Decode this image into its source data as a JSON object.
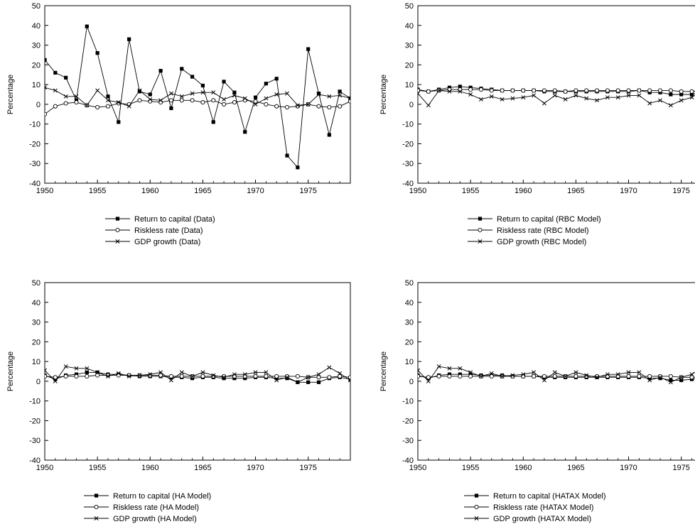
{
  "chart_data": [
    {
      "type": "line",
      "title": "",
      "ylabel": "Percentage",
      "xlabel": "",
      "ylim": [
        -40,
        50
      ],
      "yticks": [
        50,
        40,
        30,
        20,
        10,
        0,
        -10,
        -20,
        -30,
        -40
      ],
      "xlim": [
        1950,
        1979
      ],
      "xticks": [
        1950,
        1955,
        1960,
        1965,
        1970,
        1975
      ],
      "x": [
        1950,
        1951,
        1952,
        1953,
        1954,
        1955,
        1956,
        1957,
        1958,
        1959,
        1960,
        1961,
        1962,
        1963,
        1964,
        1965,
        1966,
        1967,
        1968,
        1969,
        1970,
        1971,
        1972,
        1973,
        1974,
        1975,
        1976,
        1977,
        1978,
        1979
      ],
      "legend_position": "bottom-center",
      "series": [
        {
          "name": "Return to capital (Data)",
          "marker": "square",
          "values": [
            22.5,
            16,
            13.5,
            2,
            39.5,
            26,
            4,
            -9,
            33,
            6.5,
            5,
            17,
            -2,
            18,
            14,
            9.5,
            -9,
            11.5,
            6,
            -14,
            3.5,
            10.5,
            13,
            -26,
            -32,
            28,
            5.5,
            -15.5,
            6.5,
            3
          ]
        },
        {
          "name": "Riskless rate (Data)",
          "marker": "circle",
          "values": [
            -5,
            -1,
            0.5,
            1,
            -0.5,
            -1.5,
            -1,
            0.5,
            0,
            2,
            1.5,
            1,
            2,
            2,
            2,
            1,
            2,
            0,
            1,
            2,
            1.5,
            0,
            -1,
            -1.5,
            -1,
            0,
            -1,
            -1.5,
            -1,
            1.5
          ]
        },
        {
          "name": "GDP growth (Data)",
          "marker": "x",
          "values": [
            8.5,
            7,
            4,
            4,
            -0.5,
            7,
            2,
            1,
            -1,
            7,
            2.5,
            2,
            5.5,
            4,
            5.5,
            6,
            6,
            2.5,
            4.5,
            3,
            0,
            3,
            5,
            5.5,
            -0.5,
            0,
            5,
            4,
            4.5,
            3
          ]
        }
      ]
    },
    {
      "type": "line",
      "title": "",
      "ylabel": "Percentage",
      "xlabel": "",
      "ylim": [
        -40,
        50
      ],
      "yticks": [
        50,
        40,
        30,
        20,
        10,
        0,
        -10,
        -20,
        -30,
        -40
      ],
      "xlim": [
        1950,
        1979
      ],
      "xticks": [
        1950,
        1955,
        1960,
        1965,
        1970,
        1975
      ],
      "x": [
        1950,
        1951,
        1952,
        1953,
        1954,
        1955,
        1956,
        1957,
        1958,
        1959,
        1960,
        1961,
        1962,
        1963,
        1964,
        1965,
        1966,
        1967,
        1968,
        1969,
        1970,
        1971,
        1972,
        1973,
        1974,
        1975,
        1976,
        1977,
        1978,
        1979
      ],
      "legend_position": "bottom-center",
      "series": [
        {
          "name": "Return to capital (RBC Model)",
          "marker": "square",
          "values": [
            7.5,
            6.5,
            7.5,
            8.5,
            9,
            8.5,
            8,
            7.5,
            7,
            7,
            7,
            7,
            6.5,
            6.5,
            6.5,
            6.5,
            6.5,
            6.5,
            6.5,
            6.5,
            6.5,
            7,
            6,
            6,
            5,
            5,
            5,
            6.5,
            7,
            6.5
          ]
        },
        {
          "name": "Riskless rate (RBC Model)",
          "marker": "circle",
          "values": [
            7,
            6.5,
            7,
            7.5,
            7.5,
            7.5,
            7.5,
            7,
            7,
            7,
            7,
            7,
            7,
            7,
            6.5,
            7,
            7,
            7,
            7,
            7,
            7,
            7,
            7,
            7,
            7,
            6.5,
            6.5,
            7,
            7,
            7
          ]
        },
        {
          "name": "GDP growth (RBC Model)",
          "marker": "x",
          "values": [
            5.5,
            -0.5,
            7,
            6.5,
            6.5,
            5,
            2.5,
            4,
            2.5,
            3,
            3.5,
            4.5,
            0.5,
            4.5,
            2.5,
            4.5,
            3,
            2,
            3.5,
            3.5,
            4.5,
            4.5,
            0.5,
            2,
            -0.5,
            2,
            3.5,
            7,
            5,
            2.5
          ]
        }
      ]
    },
    {
      "type": "line",
      "title": "",
      "ylabel": "Percentage",
      "xlabel": "",
      "ylim": [
        -40,
        50
      ],
      "yticks": [
        50,
        40,
        30,
        20,
        10,
        0,
        -10,
        -20,
        -30,
        -40
      ],
      "xlim": [
        1950,
        1979
      ],
      "xticks": [
        1950,
        1955,
        1960,
        1965,
        1970,
        1975
      ],
      "x": [
        1950,
        1951,
        1952,
        1953,
        1954,
        1955,
        1956,
        1957,
        1958,
        1959,
        1960,
        1961,
        1962,
        1963,
        1964,
        1965,
        1966,
        1967,
        1968,
        1969,
        1970,
        1971,
        1972,
        1973,
        1974,
        1975,
        1976,
        1977,
        1978,
        1979
      ],
      "legend_position": "bottom-center",
      "series": [
        {
          "name": "Return to capital (HA Model)",
          "marker": "square",
          "values": [
            3,
            1,
            3,
            3.5,
            4.5,
            4.5,
            3.5,
            3.5,
            3,
            2.5,
            2.5,
            2.5,
            2,
            2,
            1.5,
            2,
            2,
            1.5,
            1.5,
            1.5,
            2,
            2,
            1.5,
            1.5,
            -0.5,
            -0.5,
            -0.5,
            1.5,
            2,
            1
          ]
        },
        {
          "name": "Riskless rate (HA Model)",
          "marker": "circle",
          "values": [
            2.5,
            2,
            2.5,
            2.5,
            2.5,
            3,
            3,
            3,
            3,
            3,
            3,
            3,
            2.5,
            2.5,
            2.5,
            2.5,
            2.5,
            2.5,
            2.5,
            2.5,
            2.5,
            2.5,
            2.5,
            2.5,
            2.5,
            2,
            2,
            2,
            2.5,
            2
          ]
        },
        {
          "name": "GDP growth (HA Model)",
          "marker": "x",
          "values": [
            5.5,
            0,
            7.5,
            6.5,
            6.5,
            4.5,
            2.5,
            4,
            2.5,
            3,
            3.5,
            4.5,
            0.5,
            4.5,
            2.5,
            4.5,
            3,
            2,
            3.5,
            3.5,
            4.5,
            4.5,
            0.5,
            2,
            -0.5,
            2,
            3.5,
            7,
            4,
            0.5
          ]
        }
      ]
    },
    {
      "type": "line",
      "title": "",
      "ylabel": "Percentage",
      "xlabel": "",
      "ylim": [
        -40,
        50
      ],
      "yticks": [
        50,
        40,
        30,
        20,
        10,
        0,
        -10,
        -20,
        -30,
        -40
      ],
      "xlim": [
        1950,
        1979
      ],
      "xticks": [
        1950,
        1955,
        1960,
        1965,
        1970,
        1975
      ],
      "x": [
        1950,
        1951,
        1952,
        1953,
        1954,
        1955,
        1956,
        1957,
        1958,
        1959,
        1960,
        1961,
        1962,
        1963,
        1964,
        1965,
        1966,
        1967,
        1968,
        1969,
        1970,
        1971,
        1972,
        1973,
        1974,
        1975,
        1976,
        1977,
        1978,
        1979
      ],
      "legend_position": "bottom-center",
      "series": [
        {
          "name": "Return to capital (HATAX Model)",
          "marker": "square",
          "values": [
            3,
            1.5,
            3,
            3.5,
            3.5,
            3.5,
            3,
            3,
            3,
            2.5,
            2.5,
            2.5,
            2,
            2,
            2,
            2,
            2,
            2,
            2,
            2,
            2,
            2,
            1.5,
            1.5,
            0.5,
            0.5,
            1,
            1.5,
            2,
            1.5
          ]
        },
        {
          "name": "Riskless rate (HATAX Model)",
          "marker": "circle",
          "values": [
            2.5,
            2,
            2.5,
            2.5,
            2.5,
            2.5,
            2.5,
            2.5,
            2.5,
            2.5,
            2.5,
            2.5,
            2.5,
            2.5,
            2.5,
            2.5,
            2.5,
            2.5,
            2.5,
            2.5,
            2.5,
            2.5,
            2.5,
            2.5,
            2.5,
            2,
            2,
            2,
            2.5,
            2
          ]
        },
        {
          "name": "GDP growth (HATAX Model)",
          "marker": "x",
          "values": [
            5.5,
            0,
            7.5,
            6.5,
            6.5,
            4.5,
            2.5,
            4,
            2.5,
            3,
            3.5,
            4.5,
            0.5,
            4.5,
            2.5,
            4.5,
            3,
            2,
            3.5,
            3.5,
            4.5,
            4.5,
            0.5,
            2,
            -0.5,
            2,
            3.5,
            7,
            4,
            1
          ]
        }
      ]
    }
  ],
  "colors": {
    "line": "#000000",
    "background": "#ffffff"
  }
}
